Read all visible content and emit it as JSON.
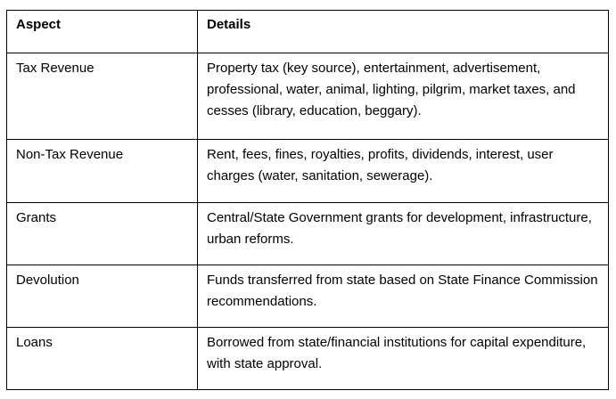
{
  "table": {
    "headers": {
      "aspect": "Aspect",
      "details": "Details"
    },
    "rows": [
      {
        "aspect": "Tax Revenue",
        "details": "Property tax (key source), entertainment, advertisement, professional, water, animal, lighting, pilgrim, market taxes, and cesses (library, education, beggary)."
      },
      {
        "aspect": "Non-Tax Revenue",
        "details": "Rent, fees, fines, royalties, profits, dividends, interest, user charges (water, sanitation, sewerage)."
      },
      {
        "aspect": "Grants",
        "details": "Central/State Government grants for development, infrastructure, urban reforms."
      },
      {
        "aspect": "Devolution",
        "details": "Funds transferred from state based on State Finance Commission recommendations."
      },
      {
        "aspect": "Loans",
        "details": "Borrowed from state/financial institutions for capital expenditure, with state approval."
      }
    ]
  }
}
